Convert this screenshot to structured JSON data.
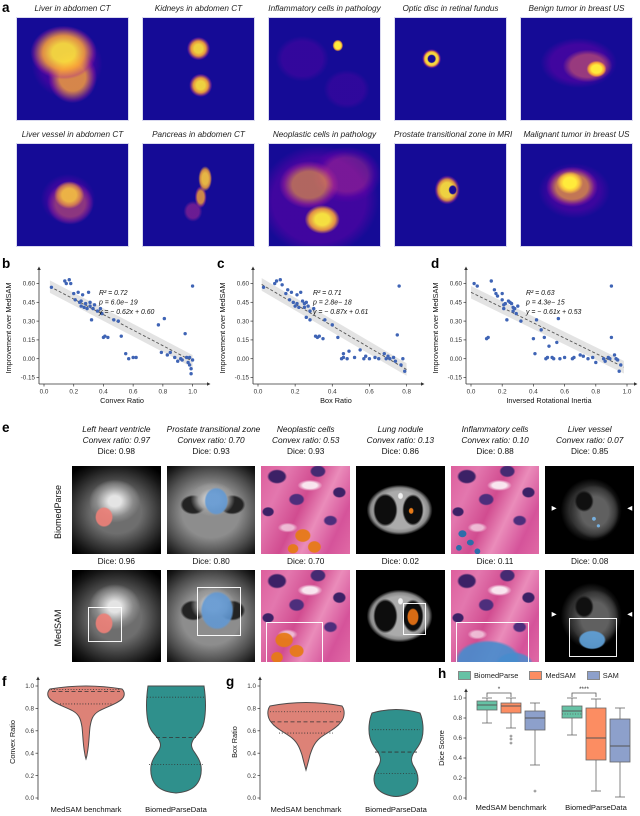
{
  "panel_labels": {
    "a": "a",
    "b": "b",
    "c": "c",
    "d": "d",
    "e": "e",
    "f": "f",
    "g": "g",
    "h": "h"
  },
  "icons": {
    "arrow_right": "▶",
    "arrow_left": "◀"
  },
  "colors": {
    "scatter_point": "#3f64b5",
    "fit_line": "#555555",
    "band": "#999999",
    "biomedparse": "#66c2a5",
    "medsam": "#fc8d62",
    "sam": "#8da0cb",
    "violin_medsam_benchmark": "#dd8277",
    "violin_biomedparsedata": "#2f908c",
    "heatmap_bg": "#150b96"
  },
  "panel_a": {
    "tiles": [
      {
        "title": "Liver in abdomen CT",
        "pattern": "large comma-shaped hot blob, center-left"
      },
      {
        "title": "Kidneys in abdomen CT",
        "pattern": "two small round blobs stacked vertically"
      },
      {
        "title": "Inflammatory cells in pathology",
        "pattern": "single tiny bright dot upper right of center"
      },
      {
        "title": "Optic disc in retinal fundus",
        "pattern": "small bright ring left of center"
      },
      {
        "title": "Benign tumor in breast US",
        "pattern": "diffuse ellipse with bright core right of center"
      },
      {
        "title": "Liver vessel in abdomen CT",
        "pattern": "wispy mottled blob at center"
      },
      {
        "title": "Pancreas in abdomen CT",
        "pattern": "S-curved elongated shape at center"
      },
      {
        "title": "Neoplastic cells in pathology",
        "pattern": "large diffuse clouds, brightest lower center"
      },
      {
        "title": "Prostate transitional zone in MRI",
        "pattern": "C-shaped arc at center"
      },
      {
        "title": "Malignant tumor in breast US",
        "pattern": "bright blob center-left with wide halo"
      }
    ]
  },
  "chart_data": [
    {
      "id": "b",
      "type": "scatter",
      "xlabel": "Convex Ratio",
      "ylabel": "Improvement over MedSAM",
      "xlim": [
        0,
        1.05
      ],
      "ylim": [
        -0.17,
        0.66
      ],
      "xticks": [
        "0.0",
        "0.2",
        "0.4",
        "0.6",
        "0.8",
        "1.0"
      ],
      "yticks": [
        "-0.15",
        "0.00",
        "0.15",
        "0.30",
        "0.45",
        "0.60"
      ],
      "stats": [
        "R² = 0.72",
        "p = 6.0e− 19",
        "y = − 0.62x + 0.60"
      ],
      "fit": {
        "slope": -0.62,
        "intercept": 0.6,
        "x0": 0.04,
        "x1": 1.0
      },
      "points": [
        [
          0.05,
          0.57
        ],
        [
          0.14,
          0.62
        ],
        [
          0.15,
          0.6
        ],
        [
          0.17,
          0.63
        ],
        [
          0.18,
          0.6
        ],
        [
          0.2,
          0.52
        ],
        [
          0.21,
          0.47
        ],
        [
          0.23,
          0.53
        ],
        [
          0.24,
          0.45
        ],
        [
          0.25,
          0.46
        ],
        [
          0.25,
          0.42
        ],
        [
          0.26,
          0.51
        ],
        [
          0.27,
          0.41
        ],
        [
          0.28,
          0.44
        ],
        [
          0.29,
          0.4
        ],
        [
          0.3,
          0.53
        ],
        [
          0.31,
          0.45
        ],
        [
          0.31,
          0.42
        ],
        [
          0.32,
          0.31
        ],
        [
          0.33,
          0.4
        ],
        [
          0.34,
          0.43
        ],
        [
          0.36,
          0.38
        ],
        [
          0.38,
          0.4
        ],
        [
          0.39,
          0.36
        ],
        [
          0.4,
          0.17
        ],
        [
          0.41,
          0.18
        ],
        [
          0.43,
          0.17
        ],
        [
          0.47,
          0.31
        ],
        [
          0.5,
          0.3
        ],
        [
          0.52,
          0.18
        ],
        [
          0.55,
          0.04
        ],
        [
          0.57,
          0.0
        ],
        [
          0.6,
          0.01
        ],
        [
          0.62,
          0.01
        ],
        [
          0.77,
          0.27
        ],
        [
          0.79,
          0.05
        ],
        [
          0.81,
          0.32
        ],
        [
          0.83,
          0.03
        ],
        [
          0.85,
          0.05
        ],
        [
          0.88,
          0.01
        ],
        [
          0.9,
          -0.02
        ],
        [
          0.92,
          0.0
        ],
        [
          0.93,
          -0.01
        ],
        [
          0.95,
          0.2
        ],
        [
          0.96,
          0.01
        ],
        [
          0.97,
          -0.03
        ],
        [
          0.98,
          -0.05
        ],
        [
          0.98,
          0.01
        ],
        [
          0.99,
          -0.08
        ],
        [
          0.99,
          -0.12
        ],
        [
          1.0,
          0.58
        ],
        [
          1.0,
          -0.01
        ]
      ]
    },
    {
      "id": "c",
      "type": "scatter",
      "xlabel": "Box Ratio",
      "ylabel": "Improvement over MedSAM",
      "xlim": [
        0,
        0.84
      ],
      "ylim": [
        -0.17,
        0.66
      ],
      "xticks": [
        "0.0",
        "0.2",
        "0.4",
        "0.6",
        "0.8"
      ],
      "yticks": [
        "-0.15",
        "0.00",
        "0.15",
        "0.30",
        "0.45",
        "0.60"
      ],
      "stats": [
        "R² = 0.71",
        "p = 2.8e− 18",
        "y = − 0.87x + 0.61"
      ],
      "fit": {
        "slope": -0.87,
        "intercept": 0.61,
        "x0": 0.02,
        "x1": 0.8
      },
      "points": [
        [
          0.03,
          0.57
        ],
        [
          0.09,
          0.6
        ],
        [
          0.1,
          0.62
        ],
        [
          0.12,
          0.63
        ],
        [
          0.13,
          0.59
        ],
        [
          0.15,
          0.52
        ],
        [
          0.16,
          0.55
        ],
        [
          0.17,
          0.47
        ],
        [
          0.18,
          0.53
        ],
        [
          0.19,
          0.45
        ],
        [
          0.2,
          0.42
        ],
        [
          0.21,
          0.51
        ],
        [
          0.21,
          0.44
        ],
        [
          0.22,
          0.41
        ],
        [
          0.23,
          0.53
        ],
        [
          0.24,
          0.46
        ],
        [
          0.25,
          0.44
        ],
        [
          0.25,
          0.41
        ],
        [
          0.26,
          0.45
        ],
        [
          0.26,
          0.33
        ],
        [
          0.27,
          0.42
        ],
        [
          0.28,
          0.31
        ],
        [
          0.28,
          0.38
        ],
        [
          0.3,
          0.4
        ],
        [
          0.31,
          0.18
        ],
        [
          0.32,
          0.17
        ],
        [
          0.33,
          0.18
        ],
        [
          0.35,
          0.16
        ],
        [
          0.36,
          0.31
        ],
        [
          0.4,
          0.27
        ],
        [
          0.43,
          0.17
        ],
        [
          0.45,
          0.0
        ],
        [
          0.46,
          0.04
        ],
        [
          0.46,
          0.01
        ],
        [
          0.48,
          0.0
        ],
        [
          0.49,
          0.06
        ],
        [
          0.52,
          0.01
        ],
        [
          0.55,
          0.07
        ],
        [
          0.57,
          0.0
        ],
        [
          0.58,
          0.02
        ],
        [
          0.6,
          0.0
        ],
        [
          0.63,
          0.01
        ],
        [
          0.65,
          0.0
        ],
        [
          0.68,
          0.04
        ],
        [
          0.69,
          0.0
        ],
        [
          0.7,
          0.02
        ],
        [
          0.71,
          0.0
        ],
        [
          0.73,
          0.01
        ],
        [
          0.74,
          -0.02
        ],
        [
          0.75,
          0.19
        ],
        [
          0.76,
          0.58
        ],
        [
          0.77,
          -0.05
        ],
        [
          0.78,
          0.0
        ],
        [
          0.79,
          -0.1
        ]
      ]
    },
    {
      "id": "d",
      "type": "scatter",
      "xlabel": "Inversed Rotational Inertia",
      "ylabel": "Improvement over MedSAM",
      "xlim": [
        0,
        1.0
      ],
      "ylim": [
        -0.17,
        0.66
      ],
      "xticks": [
        "0.0",
        "0.2",
        "0.4",
        "0.6",
        "0.8",
        "1.0"
      ],
      "yticks": [
        "-0.15",
        "0.00",
        "0.15",
        "0.30",
        "0.45",
        "0.60"
      ],
      "stats": [
        "R² = 0.63",
        "p = 4.3e− 15",
        "y = − 0.61x + 0.53"
      ],
      "fit": {
        "slope": -0.61,
        "intercept": 0.53,
        "x0": 0.0,
        "x1": 0.98
      },
      "points": [
        [
          0.02,
          0.6
        ],
        [
          0.04,
          0.58
        ],
        [
          0.1,
          0.16
        ],
        [
          0.11,
          0.17
        ],
        [
          0.13,
          0.62
        ],
        [
          0.15,
          0.55
        ],
        [
          0.16,
          0.52
        ],
        [
          0.17,
          0.5
        ],
        [
          0.2,
          0.47
        ],
        [
          0.2,
          0.52
        ],
        [
          0.21,
          0.43
        ],
        [
          0.21,
          0.4
        ],
        [
          0.22,
          0.44
        ],
        [
          0.23,
          0.31
        ],
        [
          0.24,
          0.46
        ],
        [
          0.25,
          0.45
        ],
        [
          0.26,
          0.44
        ],
        [
          0.27,
          0.41
        ],
        [
          0.27,
          0.38
        ],
        [
          0.28,
          0.4
        ],
        [
          0.29,
          0.36
        ],
        [
          0.3,
          0.42
        ],
        [
          0.32,
          0.3
        ],
        [
          0.4,
          0.16
        ],
        [
          0.41,
          0.04
        ],
        [
          0.42,
          0.31
        ],
        [
          0.45,
          0.23
        ],
        [
          0.47,
          0.17
        ],
        [
          0.48,
          0.0
        ],
        [
          0.49,
          0.01
        ],
        [
          0.5,
          0.1
        ],
        [
          0.52,
          0.01
        ],
        [
          0.53,
          0.0
        ],
        [
          0.55,
          0.13
        ],
        [
          0.56,
          0.32
        ],
        [
          0.57,
          0.0
        ],
        [
          0.6,
          0.01
        ],
        [
          0.65,
          0.0
        ],
        [
          0.66,
          0.01
        ],
        [
          0.7,
          0.03
        ],
        [
          0.72,
          0.02
        ],
        [
          0.75,
          0.0
        ],
        [
          0.78,
          0.01
        ],
        [
          0.8,
          -0.03
        ],
        [
          0.85,
          0.0
        ],
        [
          0.86,
          -0.02
        ],
        [
          0.88,
          0.01
        ],
        [
          0.89,
          0.0
        ],
        [
          0.9,
          0.58
        ],
        [
          0.9,
          0.17
        ],
        [
          0.92,
          0.03
        ],
        [
          0.93,
          0.0
        ],
        [
          0.94,
          -0.01
        ],
        [
          0.95,
          -0.1
        ],
        [
          0.96,
          -0.05
        ]
      ]
    },
    {
      "id": "f",
      "type": "violin",
      "ylabel": "Convex Ratio",
      "categories": [
        "MedSAM benchmark",
        "BiomedParseData"
      ],
      "yticks": [
        "0.0",
        "0.2",
        "0.4",
        "0.6",
        "0.8",
        "1.0"
      ],
      "violins": [
        {
          "name": "MedSAM benchmark",
          "color": "#dd8277",
          "min": 0.35,
          "max": 1.0,
          "median": 0.95,
          "q1": 0.84,
          "q3": 0.97
        },
        {
          "name": "BiomedParseData",
          "color": "#2f908c",
          "min": 0.05,
          "max": 1.0,
          "median": 0.54,
          "q1": 0.3,
          "q3": 0.9
        }
      ]
    },
    {
      "id": "g",
      "type": "violin",
      "ylabel": "Box Ratio",
      "categories": [
        "MedSAM benchmark",
        "BiomedParseData"
      ],
      "yticks": [
        "0.0",
        "0.2",
        "0.4",
        "0.6",
        "0.8",
        "1.0"
      ],
      "violins": [
        {
          "name": "MedSAM benchmark",
          "color": "#dd8277",
          "min": 0.25,
          "max": 0.85,
          "median": 0.68,
          "q1": 0.58,
          "q3": 0.77
        },
        {
          "name": "BiomedParseData",
          "color": "#2f908c",
          "min": 0.03,
          "max": 0.79,
          "median": 0.41,
          "q1": 0.22,
          "q3": 0.61
        }
      ]
    },
    {
      "id": "h",
      "type": "box",
      "ylabel": "Dice Score",
      "categories": [
        "MedSAM benchmark",
        "BiomedParseData"
      ],
      "series": [
        "BiomedParse",
        "MedSAM",
        "SAM"
      ],
      "yticks": [
        "0.0",
        "0.2",
        "0.4",
        "0.6",
        "0.8",
        "1.0"
      ],
      "boxes": [
        {
          "group": 0,
          "series": 0,
          "lo": 0.75,
          "q1": 0.88,
          "med": 0.93,
          "q3": 0.97,
          "hi": 1.0
        },
        {
          "group": 0,
          "series": 1,
          "lo": 0.7,
          "q1": 0.85,
          "med": 0.92,
          "q3": 0.95,
          "hi": 1.0,
          "outliers": [
            0.62,
            0.59,
            0.55
          ]
        },
        {
          "group": 0,
          "series": 2,
          "lo": 0.33,
          "q1": 0.68,
          "med": 0.8,
          "q3": 0.87,
          "hi": 0.95,
          "outliers": [
            0.07
          ]
        },
        {
          "group": 1,
          "series": 0,
          "lo": 0.63,
          "q1": 0.8,
          "med": 0.87,
          "q3": 0.92,
          "hi": 1.0,
          "mean": 0.84
        },
        {
          "group": 1,
          "series": 1,
          "lo": 0.07,
          "q1": 0.38,
          "med": 0.6,
          "q3": 0.9,
          "hi": 0.99
        },
        {
          "group": 1,
          "series": 2,
          "lo": 0.01,
          "q1": 0.36,
          "med": 0.52,
          "q3": 0.79,
          "hi": 0.9
        }
      ],
      "sig": [
        {
          "group": 0,
          "pair": [
            0,
            1
          ],
          "label": "*"
        },
        {
          "group": 1,
          "pair": [
            0,
            1
          ],
          "label": "****"
        }
      ]
    }
  ],
  "panel_e": {
    "row_labels": [
      "BiomedParse",
      "MedSAM"
    ],
    "columns": [
      {
        "name": "Left heart ventricle",
        "convex": "Convex ratio: 0.97",
        "dice_biomedparse": "Dice: 0.98",
        "dice_medsam": "Dice: 0.96",
        "modality": "cardiac MRI"
      },
      {
        "name": "Prostate transitional zone",
        "convex": "Convex ratio: 0.70",
        "dice_biomedparse": "Dice: 0.93",
        "dice_medsam": "Dice: 0.80",
        "modality": "prostate MRI"
      },
      {
        "name": "Neoplastic cells",
        "convex": "Convex ratio: 0.53",
        "dice_biomedparse": "Dice: 0.93",
        "dice_medsam": "Dice: 0.70",
        "modality": "pathology H&E"
      },
      {
        "name": "Lung nodule",
        "convex": "Convex ratio: 0.13",
        "dice_biomedparse": "Dice: 0.86",
        "dice_medsam": "Dice: 0.02",
        "modality": "chest CT"
      },
      {
        "name": "Inflammatory cells",
        "convex": "Convex ratio: 0.10",
        "dice_biomedparse": "Dice: 0.88",
        "dice_medsam": "Dice: 0.11",
        "modality": "pathology H&E"
      },
      {
        "name": "Liver vessel",
        "convex": "Convex ratio: 0.07",
        "dice_biomedparse": "Dice: 0.85",
        "dice_medsam": "Dice: 0.08",
        "modality": "abdomen CT"
      }
    ]
  }
}
